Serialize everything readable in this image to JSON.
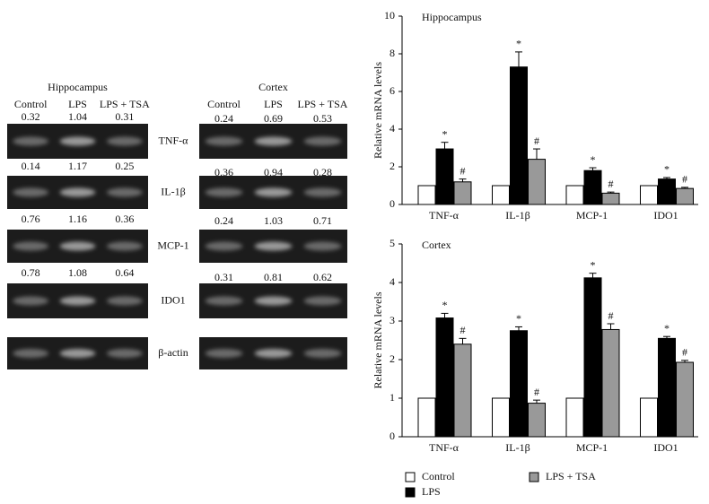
{
  "gels": [
    {
      "title": "Hippocampus",
      "lanes": [
        "Control",
        "LPS",
        "LPS + TSA"
      ],
      "values": [
        [
          0.32,
          1.04,
          0.31
        ],
        [
          0.14,
          1.17,
          0.25
        ],
        [
          0.76,
          1.16,
          0.36
        ],
        [
          0.78,
          1.08,
          0.64
        ]
      ]
    },
    {
      "title": "Cortex",
      "lanes": [
        "Control",
        "LPS",
        "LPS + TSA"
      ],
      "values": [
        [
          0.24,
          0.69,
          0.53
        ],
        [
          0.36,
          0.94,
          0.28
        ],
        [
          0.24,
          1.03,
          0.71
        ],
        [
          0.31,
          0.81,
          0.62
        ]
      ]
    }
  ],
  "gel_labels": [
    "TNF-α",
    "IL-1β",
    "MCP-1",
    "IDO1",
    "β-actin"
  ],
  "chart_data": [
    {
      "type": "bar",
      "title": "Hippocampus",
      "y_label": "Relative mRNA levels",
      "categories": [
        "TNF-α",
        "IL-1β",
        "MCP-1",
        "IDO1"
      ],
      "series": [
        {
          "color": "#ffffff",
          "values": [
            1,
            1,
            1,
            1
          ]
        },
        {
          "color": "#000000",
          "values": [
            2.95,
            7.3,
            1.8,
            1.35
          ],
          "errors": [
            0.35,
            0.8,
            0.15,
            0.08
          ],
          "annotation": "*"
        },
        {
          "color": "#999999",
          "values": [
            1.2,
            2.4,
            0.6,
            0.85
          ],
          "errors": [
            0.15,
            0.55,
            0.06,
            0.06
          ],
          "annotation": "#"
        }
      ],
      "ylim": [
        0,
        10
      ],
      "yticks": [
        0,
        2,
        4,
        6,
        8,
        10
      ]
    },
    {
      "type": "bar",
      "title": "Cortex",
      "y_label": "Relative mRNA levels",
      "categories": [
        "TNF-α",
        "IL-1β",
        "MCP-1",
        "IDO1"
      ],
      "series": [
        {
          "name": "Control",
          "color": "#ffffff",
          "values": [
            1,
            1,
            1,
            1
          ]
        },
        {
          "name": "LPS",
          "color": "#000000",
          "values": [
            3.08,
            2.75,
            4.12,
            2.55
          ],
          "errors": [
            0.12,
            0.1,
            0.12,
            0.05
          ],
          "annotation": "*"
        },
        {
          "name": "LPS + TSA",
          "color": "#999999",
          "values": [
            2.4,
            0.87,
            2.78,
            1.93
          ],
          "errors": [
            0.15,
            0.08,
            0.15,
            0.05
          ],
          "annotation": "#"
        }
      ],
      "ylim": [
        0,
        5
      ],
      "yticks": [
        0,
        1,
        2,
        3,
        4,
        5
      ]
    }
  ]
}
